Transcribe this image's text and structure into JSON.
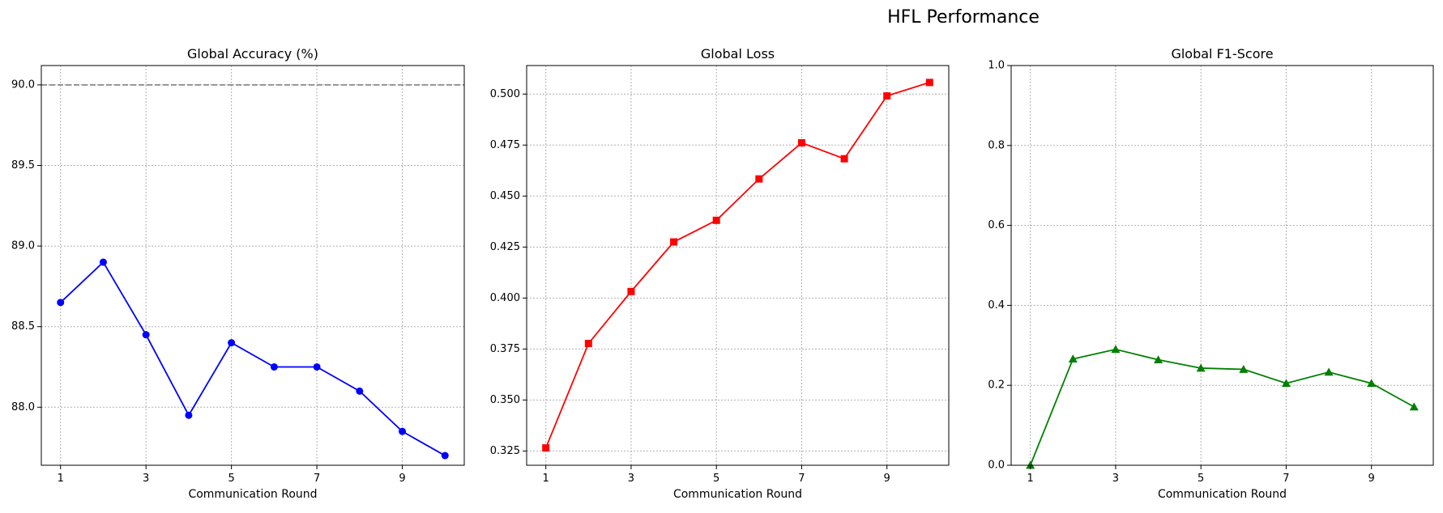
{
  "title": "HFL Performance",
  "chart_data": [
    {
      "type": "line",
      "title": "Global Accuracy (%)",
      "xlabel": "Communication Round",
      "ylabel": "",
      "x": [
        1,
        2,
        3,
        4,
        5,
        6,
        7,
        8,
        9,
        10
      ],
      "x_ticks": [
        1,
        3,
        5,
        7,
        9
      ],
      "x_tick_labels": [
        "1",
        "3",
        "5",
        "7",
        "9"
      ],
      "xlim": [
        0.55,
        10.45
      ],
      "ylim": [
        87.64,
        90.12
      ],
      "y_ticks": [
        88.0,
        88.5,
        89.0,
        89.5,
        90.0
      ],
      "y_tick_labels": [
        "88.0",
        "88.5",
        "89.0",
        "89.5",
        "90.0"
      ],
      "grid": true,
      "series": [
        {
          "values": [
            88.65,
            88.9,
            88.45,
            87.95,
            88.4,
            88.25,
            88.25,
            88.1,
            87.85,
            87.7
          ],
          "color": "#0000ff",
          "marker": "circle"
        }
      ],
      "reference_line": {
        "y": 90.0,
        "color": "#808080",
        "style": "dashed"
      }
    },
    {
      "type": "line",
      "title": "Global Loss",
      "xlabel": "Communication Round",
      "ylabel": "",
      "x": [
        1,
        2,
        3,
        4,
        5,
        6,
        7,
        8,
        9,
        10
      ],
      "x_ticks": [
        1,
        3,
        5,
        7,
        9
      ],
      "x_tick_labels": [
        "1",
        "3",
        "5",
        "7",
        "9"
      ],
      "xlim": [
        0.55,
        10.45
      ],
      "ylim": [
        0.318,
        0.514
      ],
      "y_ticks": [
        0.325,
        0.35,
        0.375,
        0.4,
        0.425,
        0.45,
        0.475,
        0.5
      ],
      "y_tick_labels": [
        "0.325",
        "0.350",
        "0.375",
        "0.400",
        "0.425",
        "0.450",
        "0.475",
        "0.500"
      ],
      "grid": true,
      "series": [
        {
          "values": [
            0.3265,
            0.3777,
            0.4032,
            0.4275,
            0.4381,
            0.4584,
            0.4761,
            0.4683,
            0.4991,
            0.5057
          ],
          "color": "#ff0000",
          "marker": "square"
        }
      ]
    },
    {
      "type": "line",
      "title": "Global F1-Score",
      "xlabel": "Communication Round",
      "ylabel": "",
      "x": [
        1,
        2,
        3,
        4,
        5,
        6,
        7,
        8,
        9,
        10
      ],
      "x_ticks": [
        1,
        3,
        5,
        7,
        9
      ],
      "x_tick_labels": [
        "1",
        "3",
        "5",
        "7",
        "9"
      ],
      "xlim": [
        0.55,
        10.45
      ],
      "ylim": [
        0.0,
        1.0
      ],
      "y_ticks": [
        0.0,
        0.2,
        0.4,
        0.6,
        0.8,
        1.0
      ],
      "y_tick_labels": [
        "0.0",
        "0.2",
        "0.4",
        "0.6",
        "0.8",
        "1.0"
      ],
      "grid": true,
      "series": [
        {
          "values": [
            0.0,
            0.266,
            0.29,
            0.264,
            0.243,
            0.24,
            0.205,
            0.233,
            0.205,
            0.146
          ],
          "color": "#008000",
          "marker": "triangle"
        }
      ]
    }
  ]
}
